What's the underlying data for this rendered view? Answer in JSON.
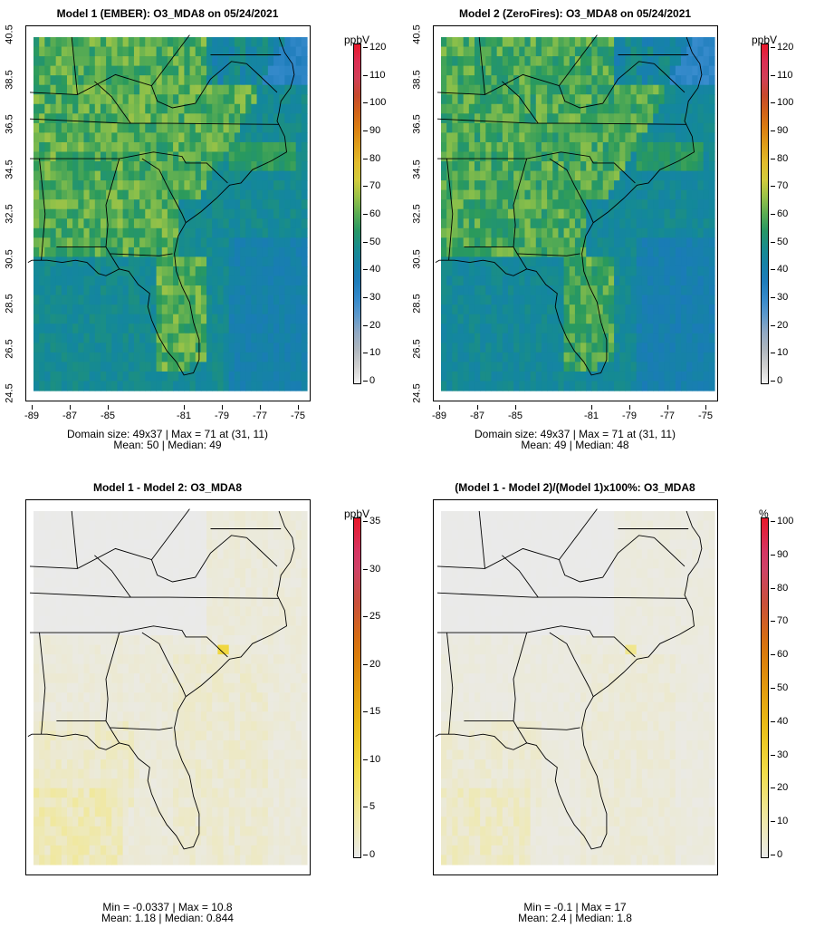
{
  "panels": [
    {
      "title": "Model 1 (EMBER): O3_MDA8 on 05/24/2021",
      "stats_line1": "Domain size: 49x37 | Max = 71 at (31, 11)",
      "stats_line2": "Mean: 50 |  Median: 49",
      "unit": "ppbV",
      "cbar_ticks": [
        "120",
        "110",
        "100",
        "90",
        "80",
        "70",
        "60",
        "50",
        "40",
        "30",
        "20",
        "10",
        "0"
      ],
      "kind": "conc",
      "mean": 50,
      "max": 71
    },
    {
      "title": "Model 2 (ZeroFires): O3_MDA8 on 05/24/2021",
      "stats_line1": "Domain size: 49x37 | Max = 71 at (31, 11)",
      "stats_line2": "Mean: 49 |  Median: 48",
      "unit": "ppbV",
      "cbar_ticks": [
        "120",
        "110",
        "100",
        "90",
        "80",
        "70",
        "60",
        "50",
        "40",
        "30",
        "20",
        "10",
        "0"
      ],
      "kind": "conc",
      "mean": 49,
      "max": 71
    },
    {
      "title": "Model 1 - Model 2: O3_MDA8",
      "stats_line1": "Min = -0.0337 | Max = 10.8",
      "stats_line2": "Mean: 1.18 |  Median: 0.844",
      "unit": "ppbV",
      "cbar_ticks": [
        "35",
        "30",
        "25",
        "20",
        "15",
        "10",
        "5",
        "0"
      ],
      "kind": "diff",
      "mean": 1.18,
      "max": 10.8
    },
    {
      "title": "(Model 1 - Model 2)/(Model 1)x100%: O3_MDA8",
      "stats_line1": "Min = -0.1 | Max = 17",
      "stats_line2": "Mean: 2.4 |  Median: 1.8",
      "unit": "%",
      "cbar_ticks": [
        "100",
        "90",
        "80",
        "70",
        "60",
        "50",
        "40",
        "30",
        "20",
        "10",
        "0"
      ],
      "kind": "pct",
      "mean": 2.4,
      "max": 17
    }
  ],
  "axes": {
    "x_ticks": [
      "-89",
      "-87",
      "-85",
      "-81",
      "-79",
      "-77",
      "-75"
    ],
    "y_ticks": [
      "40.5",
      "38.5",
      "36.5",
      "34.5",
      "32.5",
      "30.5",
      "28.5",
      "26.5",
      "24.5"
    ]
  },
  "colors": {
    "conc_scale": [
      "#f2f2f2",
      "#bdbdbd",
      "#8fa8c4",
      "#3e8fd1",
      "#1a7bb8",
      "#13889a",
      "#2a9a5c",
      "#8cc04a",
      "#e3cf3a",
      "#e0a51c",
      "#d9730e",
      "#c64a2a",
      "#d63a6a",
      "#e8182a"
    ],
    "diff_scale": [
      "#eaeaea",
      "#f0e8a0",
      "#f2dd4a",
      "#ebc118",
      "#e29a0e",
      "#d8730c",
      "#c9503b",
      "#d03e72",
      "#e8182a"
    ],
    "map_background_diff": "#e6e6e6"
  }
}
